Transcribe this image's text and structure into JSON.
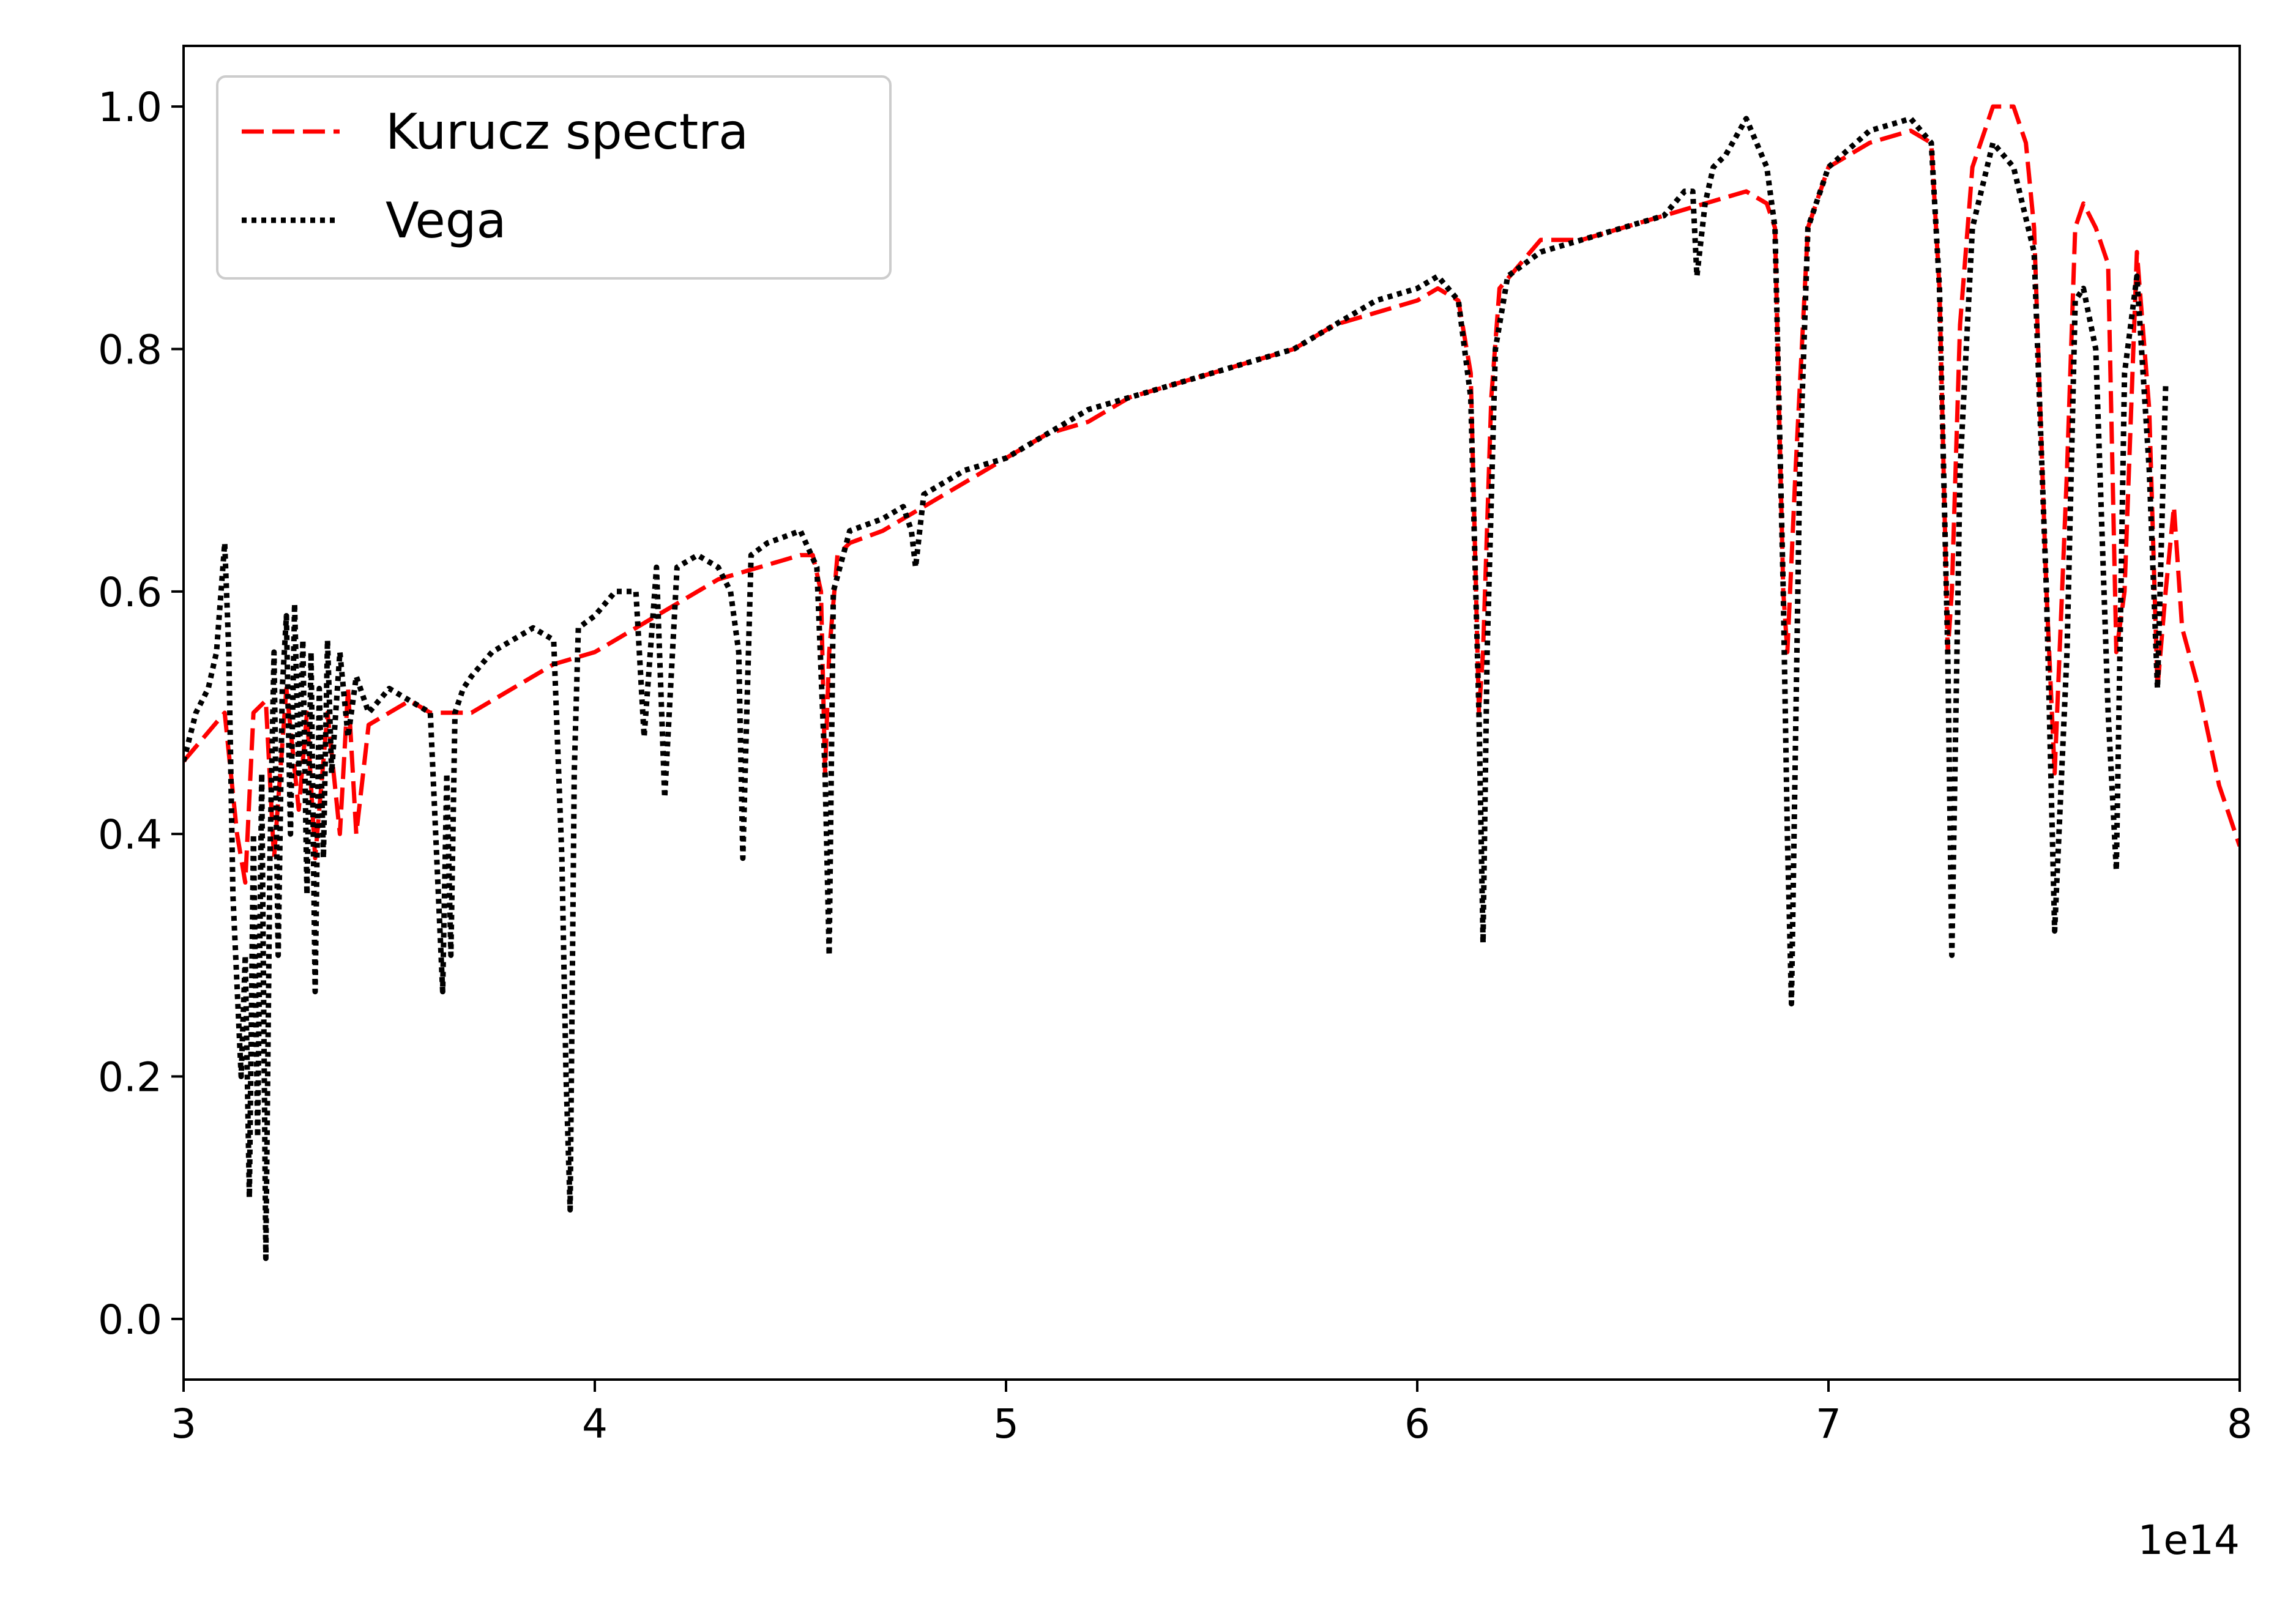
{
  "chart_data": {
    "type": "line",
    "title": "",
    "xlabel": "",
    "ylabel": "",
    "x_offset_label": "1e14",
    "xlim": [
      3,
      8
    ],
    "ylim": [
      -0.05,
      1.05
    ],
    "xticks": [
      3,
      4,
      5,
      6,
      7,
      8
    ],
    "xtick_labels": [
      "3",
      "4",
      "5",
      "6",
      "7",
      "8"
    ],
    "yticks": [
      0.0,
      0.2,
      0.4,
      0.6,
      0.8,
      1.0
    ],
    "ytick_labels": [
      "0.0",
      "0.2",
      "0.4",
      "0.6",
      "0.8",
      "1.0"
    ],
    "grid": false,
    "legend_position": "top-left",
    "series": [
      {
        "name": "Kurucz spectra",
        "color": "#ff0000",
        "style": "dashed",
        "x": [
          3.0,
          3.05,
          3.1,
          3.13,
          3.15,
          3.17,
          3.2,
          3.22,
          3.25,
          3.28,
          3.3,
          3.32,
          3.35,
          3.38,
          3.4,
          3.42,
          3.45,
          3.5,
          3.55,
          3.6,
          3.7,
          3.8,
          3.9,
          4.0,
          4.1,
          4.2,
          4.3,
          4.4,
          4.5,
          4.53,
          4.55,
          4.56,
          4.57,
          4.59,
          4.62,
          4.7,
          4.8,
          4.9,
          5.0,
          5.1,
          5.2,
          5.3,
          5.4,
          5.5,
          5.6,
          5.7,
          5.8,
          5.9,
          6.0,
          6.05,
          6.1,
          6.13,
          6.15,
          6.16,
          6.18,
          6.2,
          6.25,
          6.3,
          6.4,
          6.5,
          6.6,
          6.7,
          6.8,
          6.85,
          6.87,
          6.89,
          6.9,
          6.92,
          6.95,
          7.0,
          7.1,
          7.2,
          7.25,
          7.27,
          7.29,
          7.3,
          7.32,
          7.35,
          7.4,
          7.45,
          7.48,
          7.5,
          7.53,
          7.55,
          7.58,
          7.6,
          7.62,
          7.65,
          7.68,
          7.7,
          7.72,
          7.75,
          7.78,
          7.8,
          7.82,
          7.84,
          7.86,
          7.9,
          7.95,
          8.0
        ],
        "y": [
          0.46,
          0.48,
          0.5,
          0.4,
          0.36,
          0.5,
          0.51,
          0.38,
          0.52,
          0.42,
          0.5,
          0.38,
          0.5,
          0.4,
          0.52,
          0.4,
          0.49,
          0.5,
          0.51,
          0.5,
          0.5,
          0.52,
          0.54,
          0.55,
          0.57,
          0.59,
          0.61,
          0.62,
          0.63,
          0.63,
          0.6,
          0.45,
          0.55,
          0.63,
          0.64,
          0.65,
          0.67,
          0.69,
          0.71,
          0.73,
          0.74,
          0.76,
          0.77,
          0.78,
          0.79,
          0.8,
          0.82,
          0.83,
          0.84,
          0.85,
          0.84,
          0.78,
          0.5,
          0.55,
          0.76,
          0.85,
          0.87,
          0.89,
          0.89,
          0.9,
          0.91,
          0.92,
          0.93,
          0.92,
          0.9,
          0.6,
          0.55,
          0.7,
          0.9,
          0.95,
          0.97,
          0.98,
          0.97,
          0.85,
          0.55,
          0.6,
          0.82,
          0.95,
          1.0,
          1.0,
          0.97,
          0.9,
          0.6,
          0.45,
          0.7,
          0.9,
          0.92,
          0.9,
          0.87,
          0.55,
          0.6,
          0.88,
          0.75,
          0.52,
          0.6,
          0.67,
          0.57,
          0.52,
          0.44,
          0.39
        ]
      },
      {
        "name": "Vega",
        "color": "#000000",
        "style": "dotted",
        "x": [
          3.0,
          3.03,
          3.06,
          3.08,
          3.1,
          3.11,
          3.12,
          3.14,
          3.15,
          3.16,
          3.17,
          3.18,
          3.19,
          3.2,
          3.21,
          3.22,
          3.23,
          3.24,
          3.25,
          3.26,
          3.27,
          3.28,
          3.29,
          3.3,
          3.31,
          3.32,
          3.33,
          3.34,
          3.35,
          3.36,
          3.38,
          3.4,
          3.42,
          3.45,
          3.5,
          3.55,
          3.6,
          3.63,
          3.64,
          3.65,
          3.66,
          3.68,
          3.7,
          3.75,
          3.8,
          3.85,
          3.9,
          3.92,
          3.93,
          3.94,
          3.95,
          3.96,
          4.0,
          4.05,
          4.1,
          4.12,
          4.15,
          4.17,
          4.2,
          4.25,
          4.3,
          4.33,
          4.35,
          4.36,
          4.38,
          4.42,
          4.5,
          4.54,
          4.56,
          4.57,
          4.58,
          4.62,
          4.7,
          4.75,
          4.77,
          4.78,
          4.8,
          4.9,
          5.0,
          5.1,
          5.2,
          5.3,
          5.4,
          5.5,
          5.6,
          5.7,
          5.8,
          5.9,
          6.0,
          6.05,
          6.1,
          6.13,
          6.15,
          6.16,
          6.17,
          6.19,
          6.22,
          6.3,
          6.4,
          6.5,
          6.6,
          6.65,
          6.67,
          6.68,
          6.7,
          6.72,
          6.75,
          6.8,
          6.85,
          6.87,
          6.89,
          6.9,
          6.91,
          6.93,
          6.95,
          7.0,
          7.1,
          7.2,
          7.25,
          7.27,
          7.29,
          7.3,
          7.32,
          7.35,
          7.4,
          7.45,
          7.5,
          7.53,
          7.55,
          7.58,
          7.6,
          7.62,
          7.65,
          7.68,
          7.7,
          7.72,
          7.75,
          7.78,
          7.8,
          7.82
        ],
        "y": [
          0.46,
          0.5,
          0.52,
          0.55,
          0.64,
          0.55,
          0.35,
          0.2,
          0.3,
          0.1,
          0.4,
          0.15,
          0.45,
          0.05,
          0.38,
          0.55,
          0.3,
          0.52,
          0.58,
          0.4,
          0.59,
          0.45,
          0.56,
          0.35,
          0.55,
          0.27,
          0.52,
          0.38,
          0.56,
          0.45,
          0.55,
          0.48,
          0.53,
          0.5,
          0.52,
          0.51,
          0.5,
          0.27,
          0.45,
          0.3,
          0.5,
          0.52,
          0.53,
          0.55,
          0.56,
          0.57,
          0.56,
          0.38,
          0.2,
          0.09,
          0.45,
          0.57,
          0.58,
          0.6,
          0.6,
          0.48,
          0.62,
          0.43,
          0.62,
          0.63,
          0.62,
          0.6,
          0.55,
          0.38,
          0.63,
          0.64,
          0.65,
          0.62,
          0.45,
          0.3,
          0.6,
          0.65,
          0.66,
          0.67,
          0.65,
          0.62,
          0.68,
          0.7,
          0.71,
          0.73,
          0.75,
          0.76,
          0.77,
          0.78,
          0.79,
          0.8,
          0.82,
          0.84,
          0.85,
          0.86,
          0.84,
          0.76,
          0.5,
          0.31,
          0.55,
          0.8,
          0.86,
          0.88,
          0.89,
          0.9,
          0.91,
          0.93,
          0.93,
          0.86,
          0.92,
          0.95,
          0.96,
          0.99,
          0.95,
          0.9,
          0.6,
          0.4,
          0.26,
          0.7,
          0.9,
          0.95,
          0.98,
          0.99,
          0.97,
          0.85,
          0.55,
          0.3,
          0.7,
          0.9,
          0.97,
          0.95,
          0.88,
          0.6,
          0.32,
          0.55,
          0.84,
          0.85,
          0.8,
          0.5,
          0.37,
          0.78,
          0.86,
          0.7,
          0.52,
          0.77
        ]
      }
    ]
  }
}
